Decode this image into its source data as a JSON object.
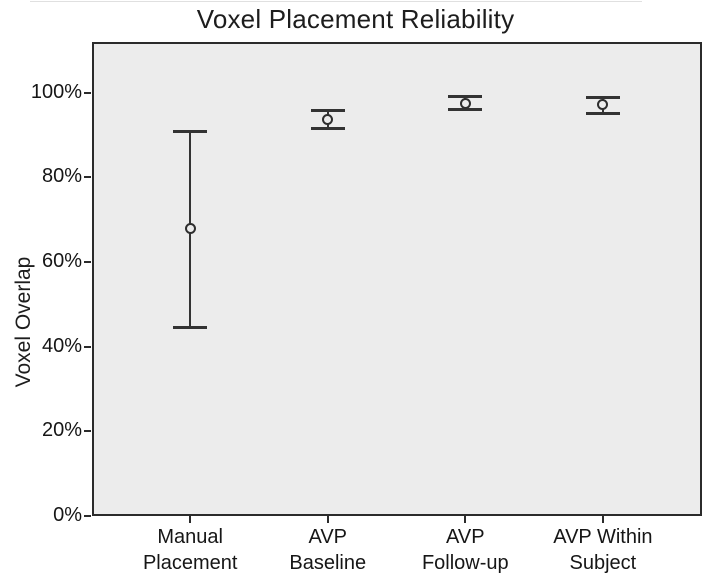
{
  "page": {
    "background": "#ffffff"
  },
  "chart_data": {
    "type": "scatter",
    "subtype": "point-with-error-bars",
    "title": "Voxel Placement Reliability",
    "xlabel": "",
    "ylabel": "Voxel Overlap",
    "ylim": [
      0,
      112
    ],
    "grid": false,
    "legend": false,
    "plot_bg_color": "#ececec",
    "frame_color": "#2b2b2b",
    "marker_color": "#333333",
    "text_color": "#161616",
    "yticks": [
      {
        "value": 0,
        "label": "0%"
      },
      {
        "value": 20,
        "label": "20%"
      },
      {
        "value": 40,
        "label": "40%"
      },
      {
        "value": 60,
        "label": "60%"
      },
      {
        "value": 80,
        "label": "80%"
      },
      {
        "value": 100,
        "label": "100%"
      }
    ],
    "categories": [
      "Manual Placement",
      "AVP Baseline",
      "AVP Follow-up",
      "AVP Within Subject"
    ],
    "category_label_lines": [
      [
        "Manual",
        "Placement"
      ],
      [
        "AVP",
        "Baseline"
      ],
      [
        "AVP",
        "Follow-up"
      ],
      [
        "AVP Within",
        "Subject"
      ]
    ],
    "series": [
      {
        "name": "Voxel Overlap",
        "points": [
          {
            "category": "Manual Placement",
            "mean": 67.9,
            "lo": 44.5,
            "hi": 91.0
          },
          {
            "category": "AVP Baseline",
            "mean": 93.8,
            "lo": 91.5,
            "hi": 96.0
          },
          {
            "category": "AVP Follow-up",
            "mean": 97.5,
            "lo": 95.9,
            "hi": 99.2
          },
          {
            "category": "AVP Within Subject",
            "mean": 97.2,
            "lo": 94.9,
            "hi": 98.9
          }
        ]
      }
    ]
  }
}
